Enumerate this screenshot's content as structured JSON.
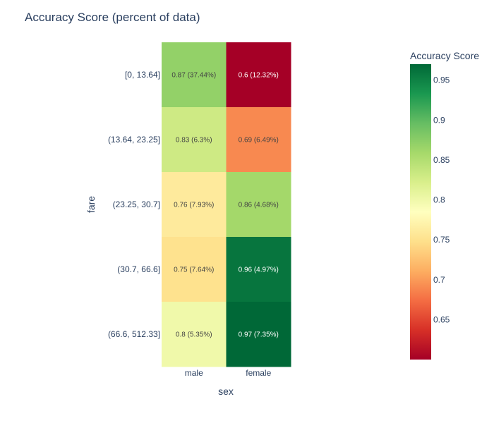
{
  "chart_data": {
    "type": "heatmap",
    "title": "Accuracy Score (percent of data)",
    "xlabel": "sex",
    "ylabel": "fare",
    "x_categories": [
      "male",
      "female"
    ],
    "y_categories": [
      "[0, 13.64]",
      "(13.64, 23.25]",
      "(23.25, 30.7]",
      "(30.7, 66.6]",
      "(66.6, 512.33]"
    ],
    "values": [
      [
        0.87,
        0.6
      ],
      [
        0.83,
        0.69
      ],
      [
        0.76,
        0.86
      ],
      [
        0.75,
        0.96
      ],
      [
        0.8,
        0.97
      ]
    ],
    "cell_labels": [
      [
        "0.87 (37.44%)",
        "0.6 (12.32%)"
      ],
      [
        "0.83 (6.3%)",
        "0.69 (6.49%)"
      ],
      [
        "0.76 (7.93%)",
        "0.86 (4.68%)"
      ],
      [
        "0.75 (7.64%)",
        "0.96 (4.97%)"
      ],
      [
        "0.8 (5.35%)",
        "0.97 (7.35%)"
      ]
    ],
    "colorscale": "RdYlGn",
    "colorbar": {
      "title": "Accuracy Score",
      "range": [
        0.6,
        0.97
      ],
      "ticks": [
        "0.65",
        "0.7",
        "0.75",
        "0.8",
        "0.85",
        "0.9",
        "0.95"
      ]
    }
  }
}
